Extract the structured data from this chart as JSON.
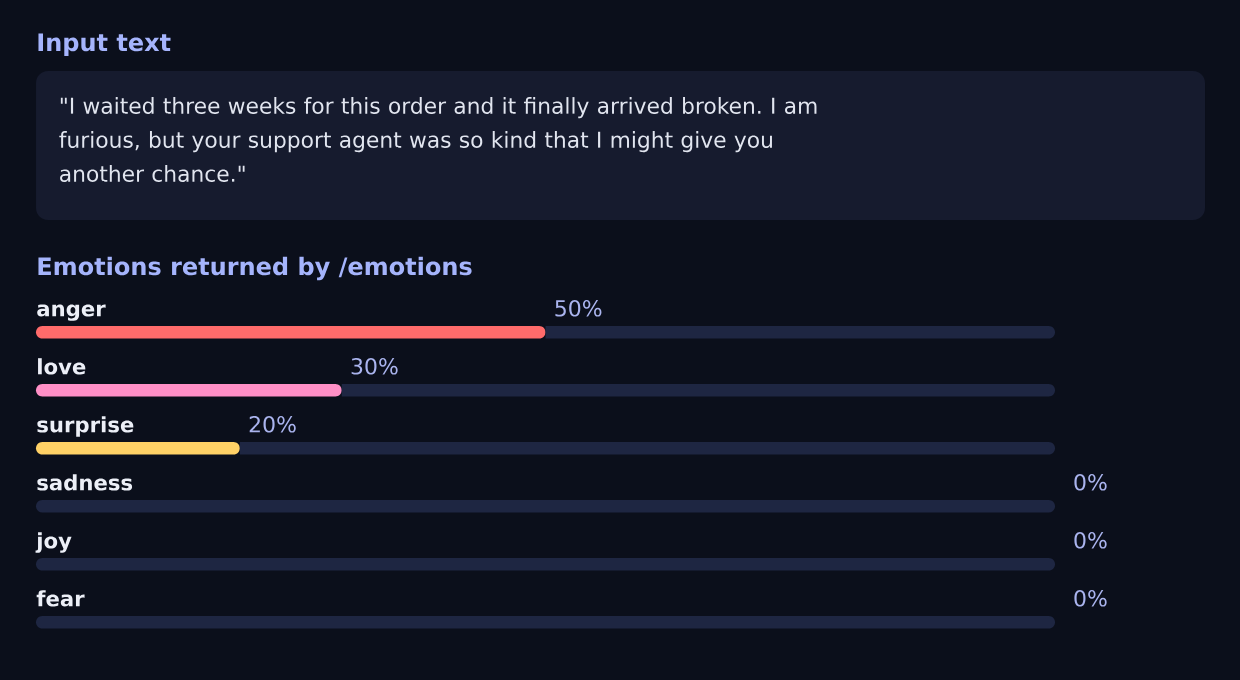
{
  "chart_data": [
    {
      "type": "other",
      "title": "Input text",
      "annotations": [
        "\"I waited three weeks for this order and it finally arrived broken. I am furious, but your support agent was so kind that I might give you another chance.\""
      ]
    },
    {
      "type": "bar",
      "orientation": "horizontal",
      "stacked": true,
      "title": "Emotions returned by /emotions",
      "categories": [
        "anger",
        "love",
        "surprise",
        "sadness",
        "joy",
        "fear"
      ],
      "series": [
        {
          "values": [
            50,
            30,
            20,
            0,
            0,
            0
          ],
          "colors": [
            "#ff6b6b",
            "#ff8fc6",
            "#ffd166",
            null,
            null,
            null
          ],
          "value_labels": [
            "50%",
            "30%",
            "20%",
            "0%",
            "0%",
            "0%"
          ]
        },
        {
          "color": "#1e2642",
          "values": [
            50,
            70,
            80,
            100,
            100,
            100
          ]
        }
      ],
      "xlim": [
        0,
        100
      ],
      "tick_labels": "y"
    }
  ]
}
